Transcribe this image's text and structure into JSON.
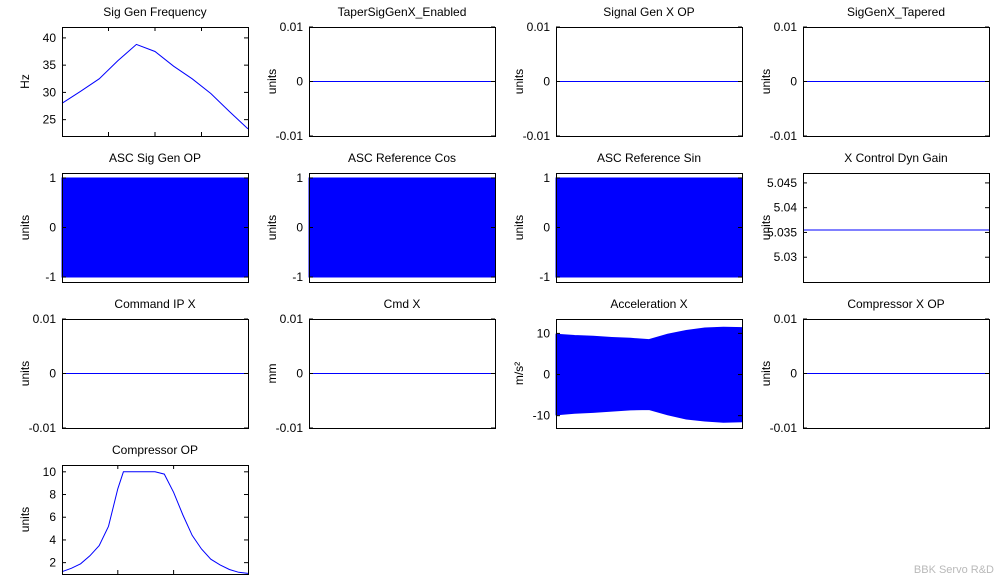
{
  "chart_data": [
    {
      "type": "line",
      "title": "Sig Gen Frequency",
      "ylabel": "Hz",
      "ylim": [
        22,
        42
      ],
      "yticks": [
        25,
        30,
        35,
        40
      ],
      "ytick_labels": [
        "25",
        "30",
        "35",
        "40"
      ],
      "xticks": [
        0.25,
        0.5,
        0.75
      ],
      "series": [
        {
          "name": "Sig Gen Frequency",
          "x": [
            0,
            0.1,
            0.2,
            0.3,
            0.4,
            0.5,
            0.6,
            0.7,
            0.8,
            0.9,
            1
          ],
          "values": [
            28,
            30.2,
            32.5,
            35.8,
            38.8,
            37.5,
            34.8,
            32.5,
            29.8,
            26.5,
            23.3
          ],
          "fill": false
        }
      ]
    },
    {
      "type": "line",
      "title": "TaperSigGenX_Enabled",
      "ylabel": "units",
      "ylim": [
        -0.01,
        0.01
      ],
      "yticks": [
        -0.01,
        0,
        0.01
      ],
      "ytick_labels": [
        "-0.01",
        "0",
        "0.01"
      ],
      "xticks": [],
      "series": [
        {
          "name": "TaperSigGenX_Enabled",
          "x": [
            0,
            1
          ],
          "values": [
            0,
            0
          ],
          "fill": false
        }
      ]
    },
    {
      "type": "line",
      "title": "Signal Gen X OP",
      "ylabel": "units",
      "ylim": [
        -0.01,
        0.01
      ],
      "yticks": [
        -0.01,
        0,
        0.01
      ],
      "ytick_labels": [
        "-0.01",
        "0",
        "0.01"
      ],
      "xticks": [],
      "series": [
        {
          "name": "Signal Gen X OP",
          "x": [
            0,
            1
          ],
          "values": [
            0,
            0
          ],
          "fill": false
        }
      ]
    },
    {
      "type": "line",
      "title": "SigGenX_Tapered",
      "ylabel": "units",
      "ylim": [
        -0.01,
        0.01
      ],
      "yticks": [
        -0.01,
        0,
        0.01
      ],
      "ytick_labels": [
        "-0.01",
        "0",
        "0.01"
      ],
      "xticks": [],
      "series": [
        {
          "name": "SigGenX_Tapered",
          "x": [
            0,
            1
          ],
          "values": [
            0,
            0
          ],
          "fill": false
        }
      ]
    },
    {
      "type": "area",
      "title": "ASC Sig Gen OP",
      "ylabel": "units",
      "ylim": [
        -1.1,
        1.1
      ],
      "yticks": [
        -1,
        0,
        1
      ],
      "ytick_labels": [
        "-1",
        "0",
        "1"
      ],
      "xticks": [],
      "series": [
        {
          "name": "ASC Sig Gen OP",
          "x": [
            0,
            1
          ],
          "upper": [
            1,
            1
          ],
          "lower": [
            -1,
            -1
          ],
          "fill": true
        }
      ]
    },
    {
      "type": "area",
      "title": "ASC Reference Cos",
      "ylabel": "units",
      "ylim": [
        -1.1,
        1.1
      ],
      "yticks": [
        -1,
        0,
        1
      ],
      "ytick_labels": [
        "-1",
        "0",
        "1"
      ],
      "xticks": [],
      "series": [
        {
          "name": "ASC Reference Cos",
          "x": [
            0,
            1
          ],
          "upper": [
            1,
            1
          ],
          "lower": [
            -1,
            -1
          ],
          "fill": true
        }
      ]
    },
    {
      "type": "area",
      "title": "ASC Reference Sin",
      "ylabel": "units",
      "ylim": [
        -1.1,
        1.1
      ],
      "yticks": [
        -1,
        0,
        1
      ],
      "ytick_labels": [
        "-1",
        "0",
        "1"
      ],
      "xticks": [],
      "series": [
        {
          "name": "ASC Reference Sin",
          "x": [
            0,
            1
          ],
          "upper": [
            1,
            1
          ],
          "lower": [
            -1,
            -1
          ],
          "fill": true
        }
      ]
    },
    {
      "type": "line",
      "title": "X Control Dyn Gain",
      "ylabel": "units",
      "ylim": [
        5.025,
        5.047
      ],
      "yticks": [
        5.03,
        5.035,
        5.04,
        5.045
      ],
      "ytick_labels": [
        "5.03",
        "5.035",
        "5.04",
        "5.045"
      ],
      "xticks": [],
      "series": [
        {
          "name": "X Control Dyn Gain",
          "x": [
            0,
            1
          ],
          "values": [
            5.0355,
            5.0355
          ],
          "fill": false
        }
      ]
    },
    {
      "type": "line",
      "title": "Command IP X",
      "ylabel": "units",
      "ylim": [
        -0.01,
        0.01
      ],
      "yticks": [
        -0.01,
        0,
        0.01
      ],
      "ytick_labels": [
        "-0.01",
        "0",
        "0.01"
      ],
      "xticks": [],
      "series": [
        {
          "name": "Command IP X",
          "x": [
            0,
            1
          ],
          "values": [
            0,
            0
          ],
          "fill": false
        }
      ]
    },
    {
      "type": "line",
      "title": "Cmd X",
      "ylabel": "mm",
      "ylim": [
        -0.01,
        0.01
      ],
      "yticks": [
        -0.01,
        0,
        0.01
      ],
      "ytick_labels": [
        "-0.01",
        "0",
        "0.01"
      ],
      "xticks": [],
      "series": [
        {
          "name": "Cmd X",
          "x": [
            0,
            1
          ],
          "values": [
            0,
            0
          ],
          "fill": false
        }
      ]
    },
    {
      "type": "area",
      "title": "Acceleration X",
      "ylabel": "m/s²",
      "ylim": [
        -13,
        13.5
      ],
      "yticks": [
        -10,
        0,
        10
      ],
      "ytick_labels": [
        "-10",
        "0",
        "10"
      ],
      "xticks": [],
      "series": [
        {
          "name": "Acceleration X",
          "x": [
            0,
            0.1,
            0.2,
            0.3,
            0.4,
            0.5,
            0.6,
            0.7,
            0.8,
            0.9,
            1
          ],
          "upper": [
            9.8,
            9.5,
            9.3,
            9,
            8.8,
            8.5,
            9.8,
            10.7,
            11.3,
            11.5,
            11.4
          ],
          "lower": [
            -9.8,
            -9.4,
            -9.2,
            -8.9,
            -8.6,
            -8.5,
            -9.8,
            -10.8,
            -11.3,
            -11.6,
            -11.5
          ],
          "fill": true
        }
      ]
    },
    {
      "type": "line",
      "title": "Compressor X OP",
      "ylabel": "units",
      "ylim": [
        -0.01,
        0.01
      ],
      "yticks": [
        -0.01,
        0,
        0.01
      ],
      "ytick_labels": [
        "-0.01",
        "0",
        "0.01"
      ],
      "xticks": [],
      "series": [
        {
          "name": "Compressor X OP",
          "x": [
            0,
            1
          ],
          "values": [
            0,
            0
          ],
          "fill": false
        }
      ]
    },
    {
      "type": "line",
      "title": "Compressor OP",
      "ylabel": "units",
      "ylim": [
        1,
        10.6
      ],
      "yticks": [
        2,
        4,
        6,
        8,
        10
      ],
      "ytick_labels": [
        "2",
        "4",
        "6",
        "8",
        "10"
      ],
      "xticks": [
        0.3,
        0.6
      ],
      "series": [
        {
          "name": "Compressor OP",
          "x": [
            0,
            0.05,
            0.1,
            0.15,
            0.2,
            0.25,
            0.3,
            0.33,
            0.36,
            0.4,
            0.45,
            0.5,
            0.55,
            0.6,
            0.65,
            0.7,
            0.75,
            0.8,
            0.85,
            0.9,
            0.95,
            1
          ],
          "values": [
            1.2,
            1.5,
            1.9,
            2.6,
            3.5,
            5.2,
            8.5,
            10,
            10,
            10,
            10,
            10,
            9.8,
            8.2,
            6.2,
            4.4,
            3.2,
            2.3,
            1.8,
            1.4,
            1.15,
            1.05
          ],
          "fill": false
        }
      ]
    }
  ],
  "watermark": "BBK Servo R&D",
  "colors": {
    "series": "#0000ff",
    "axis": "#000000",
    "background": "#ffffff"
  }
}
